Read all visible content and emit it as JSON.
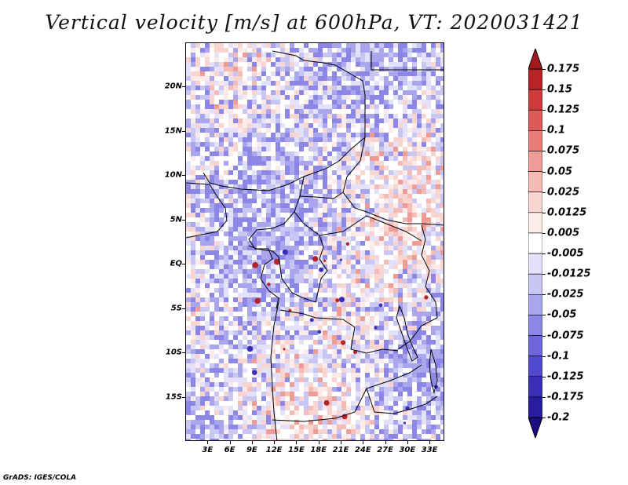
{
  "title": "Vertical velocity [m/s] at 600hPa, VT: 2020031421",
  "credit": "GrADS: IGES/COLA",
  "map": {
    "lon_range": [
      0,
      35
    ],
    "lat_range": [
      -20,
      25
    ],
    "lat_ticks": [
      {
        "label": "20N",
        "value": 20
      },
      {
        "label": "15N",
        "value": 15
      },
      {
        "label": "10N",
        "value": 10
      },
      {
        "label": "5N",
        "value": 5
      },
      {
        "label": "EQ",
        "value": 0
      },
      {
        "label": "5S",
        "value": -5
      },
      {
        "label": "10S",
        "value": -10
      },
      {
        "label": "15S",
        "value": -15
      }
    ],
    "lon_ticks": [
      {
        "label": "3E",
        "value": 3
      },
      {
        "label": "6E",
        "value": 6
      },
      {
        "label": "9E",
        "value": 9
      },
      {
        "label": "12E",
        "value": 12
      },
      {
        "label": "15E",
        "value": 15
      },
      {
        "label": "18E",
        "value": 18
      },
      {
        "label": "21E",
        "value": 21
      },
      {
        "label": "24E",
        "value": 24
      },
      {
        "label": "27E",
        "value": 27
      },
      {
        "label": "30E",
        "value": 30
      },
      {
        "label": "33E",
        "value": 33
      }
    ]
  },
  "colorbar": {
    "levels": [
      "0.175",
      "0.15",
      "0.125",
      "0.1",
      "0.075",
      "0.05",
      "0.025",
      "0.0125",
      "0.005",
      "-0.005",
      "-0.0125",
      "-0.025",
      "-0.05",
      "-0.075",
      "-0.1",
      "-0.125",
      "-0.175",
      "-0.2"
    ],
    "colors": [
      "#a01b1e",
      "#b72327",
      "#cc3a3c",
      "#dc5a58",
      "#e77c78",
      "#ef9c97",
      "#f5bbb6",
      "#f9d5d1",
      "#fcebe9",
      "#ffffff",
      "#e3e2fa",
      "#c9c6f4",
      "#aaa6ee",
      "#8c86e6",
      "#6e66dc",
      "#5048cd",
      "#3a2fb8",
      "#2a1c9e",
      "#1a0c80"
    ]
  }
}
